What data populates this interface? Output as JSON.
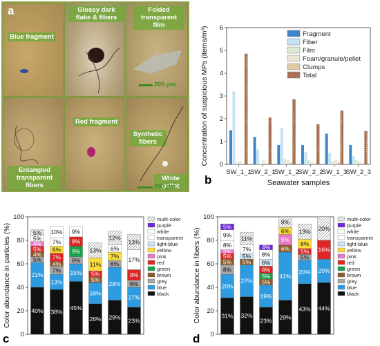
{
  "panel_a": {
    "letter": "a",
    "labels": [
      "Blue fragment",
      "Glossy dark\nflake & fibers",
      "Folded\ntransparent\nfilm",
      "Red fragment",
      "Synthetic\nfibers",
      "Entangled\ntransparent fibers",
      "White pellet"
    ],
    "scale_labels": [
      "200 μm",
      "200 μm"
    ]
  },
  "chart_data": [
    {
      "panel": "b",
      "type": "bar",
      "xlabel": "Seawater samples",
      "ylabel": "Concentration of suspicious MPs (items/m³)",
      "categories": [
        "SW_1_1",
        "SW_2_1",
        "SW_1_2",
        "SW_2_2",
        "SW_1_3",
        "SW_2_3"
      ],
      "ylim": [
        0,
        6
      ],
      "yticks": [
        0,
        1,
        2,
        3,
        4,
        5,
        6
      ],
      "legend": "top-right",
      "series": [
        {
          "name": "Fragment",
          "color": "#3d85c6",
          "values": [
            1.5,
            1.2,
            0.85,
            0.85,
            1.35,
            0.85
          ]
        },
        {
          "name": "Fiber",
          "color": "#c6e2f5",
          "values": [
            3.2,
            0.65,
            1.6,
            0.55,
            0.5,
            0.35
          ]
        },
        {
          "name": "Film",
          "color": "#d9ead3",
          "values": [
            0.08,
            0.05,
            0.25,
            0.18,
            0.15,
            0.18
          ]
        },
        {
          "name": "Foam/granule/pellet",
          "color": "#ece4d2",
          "values": [
            0.15,
            0.18,
            0.18,
            0.12,
            0.2,
            0.12
          ]
        },
        {
          "name": "Clumps",
          "color": "#e0c9a1",
          "values": [
            0.0,
            0.0,
            0.08,
            0.0,
            0.08,
            0.0
          ]
        },
        {
          "name": "Total",
          "color": "#a0684a",
          "values": [
            4.85,
            2.05,
            2.85,
            1.75,
            2.35,
            1.45
          ]
        }
      ]
    },
    {
      "panel": "c",
      "type": "bar",
      "stacked": true,
      "ylabel": "Color abundance in particles (%)",
      "ylim": [
        0,
        100
      ],
      "yticks": [
        0,
        20,
        40,
        60,
        80,
        100
      ],
      "legend": "right",
      "series": [
        {
          "name": "black",
          "color": "#111111",
          "values": [
            40,
            38,
            45,
            26,
            29,
            23
          ]
        },
        {
          "name": "blue",
          "color": "#2e9be0",
          "values": [
            21,
            13,
            15,
            18,
            28,
            17
          ]
        },
        {
          "name": "grey",
          "color": "#a6a6a6",
          "values": [
            5,
            7,
            6,
            0,
            6,
            6
          ]
        },
        {
          "name": "brown",
          "color": "#8d5b2b",
          "values": [
            4,
            4,
            0,
            5,
            0,
            0
          ]
        },
        {
          "name": "green",
          "color": "#16a34a",
          "values": [
            0,
            0,
            9,
            0,
            0,
            0
          ]
        },
        {
          "name": "red",
          "color": "#dc2626",
          "values": [
            5,
            7,
            8,
            5,
            0,
            9
          ]
        },
        {
          "name": "pink",
          "color": "#e879c8",
          "values": [
            4,
            0,
            0,
            0,
            0,
            0
          ]
        },
        {
          "name": "yellow",
          "color": "#f9dc3b",
          "values": [
            0,
            6,
            0,
            11,
            7,
            0
          ]
        },
        {
          "name": "light-blue",
          "color": "#cfe6f7",
          "values": [
            0,
            0,
            0,
            0,
            0,
            0
          ]
        },
        {
          "name": "transparent",
          "color": "#ffffff",
          "values": [
            5,
            7,
            0,
            0,
            6,
            17
          ]
        },
        {
          "name": "white",
          "color": "#ffffff",
          "values": [
            0,
            10,
            9,
            0,
            0,
            0
          ]
        },
        {
          "name": "purple",
          "color": "#6d28d9",
          "values": [
            0,
            0,
            0,
            0,
            0,
            0
          ]
        },
        {
          "name": "multi-color",
          "color": "#ffffff",
          "values": [
            5,
            0,
            0,
            13,
            12,
            13
          ]
        }
      ]
    },
    {
      "panel": "d",
      "type": "bar",
      "stacked": true,
      "ylabel": "Color abundance in fibers (%)",
      "ylim": [
        0,
        100
      ],
      "yticks": [
        0,
        20,
        40,
        60,
        80,
        100
      ],
      "legend": "right",
      "series": [
        {
          "name": "black",
          "color": "#111111",
          "values": [
            31,
            32,
            23,
            29,
            43,
            44
          ]
        },
        {
          "name": "blue",
          "color": "#2e9be0",
          "values": [
            20,
            27,
            19,
            41,
            20,
            20
          ]
        },
        {
          "name": "grey",
          "color": "#a6a6a6",
          "values": [
            8,
            0,
            0,
            0,
            5,
            0
          ]
        },
        {
          "name": "brown",
          "color": "#8d5b2b",
          "values": [
            5,
            5,
            5,
            6,
            0,
            0
          ]
        },
        {
          "name": "green",
          "color": "#16a34a",
          "values": [
            0,
            0,
            5,
            0,
            0,
            0
          ]
        },
        {
          "name": "red",
          "color": "#dc2626",
          "values": [
            5,
            0,
            6,
            0,
            5,
            16
          ]
        },
        {
          "name": "pink",
          "color": "#e879c8",
          "values": [
            3,
            0,
            0,
            9,
            0,
            0
          ]
        },
        {
          "name": "yellow",
          "color": "#f9dc3b",
          "values": [
            0,
            0,
            0,
            6,
            8,
            0
          ]
        },
        {
          "name": "light-blue",
          "color": "#cfe6f7",
          "values": [
            0,
            5,
            6,
            0,
            0,
            0
          ]
        },
        {
          "name": "transparent",
          "color": "#ffffff",
          "values": [
            8,
            7,
            8,
            0,
            0,
            0
          ]
        },
        {
          "name": "white",
          "color": "#ffffff",
          "values": [
            9,
            0,
            0,
            0,
            0,
            0
          ]
        },
        {
          "name": "purple",
          "color": "#6d28d9",
          "values": [
            5,
            0,
            4,
            0,
            0,
            0
          ]
        },
        {
          "name": "multi-color",
          "color": "#ffffff",
          "values": [
            0,
            11,
            0,
            9,
            13,
            20
          ]
        }
      ]
    }
  ]
}
